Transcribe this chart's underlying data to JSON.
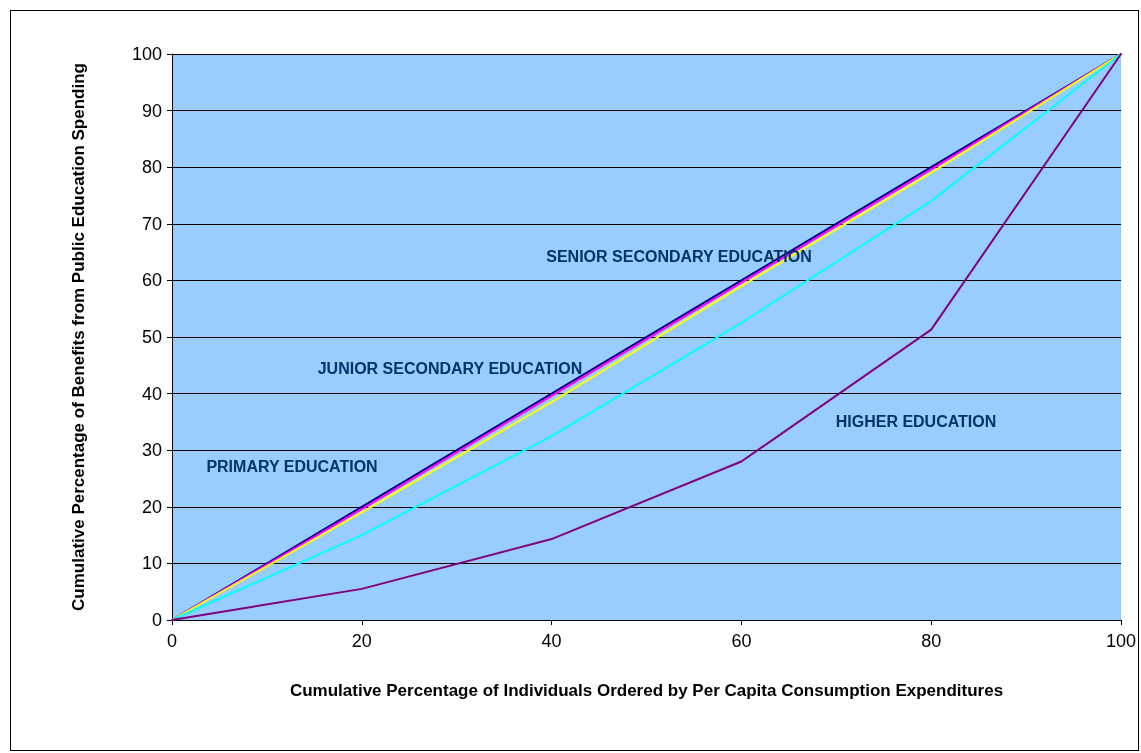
{
  "chart_data": {
    "type": "line",
    "xlabel": "Cumulative Percentage of Individuals Ordered by Per Capita Consumption Expenditures",
    "ylabel": "Cumulative Percentage of Benefits from Public Education Spending",
    "x": [
      0,
      20,
      40,
      60,
      80,
      100
    ],
    "series": [
      {
        "color": "#000080",
        "values": [
          0,
          20,
          40,
          60,
          80,
          100
        ]
      },
      {
        "color": "#ff00ff",
        "values": [
          0,
          19.6,
          39.6,
          59.6,
          79.6,
          100
        ]
      },
      {
        "color": "#ffff00",
        "values": [
          0,
          19,
          38.5,
          59,
          79,
          100
        ]
      },
      {
        "color": "#00ffff",
        "values": [
          0,
          15,
          32.5,
          52.5,
          74,
          100
        ]
      },
      {
        "color": "#800080",
        "values": [
          0,
          5.5,
          14.3,
          28,
          51.3,
          100
        ]
      }
    ],
    "annotations": [
      "PRIMARY EDUCATION",
      "JUNIOR SECONDARY EDUCATION",
      "SENIOR SECONDARY EDUCATION",
      "HIGHER EDUCATION"
    ],
    "xlim": [
      0,
      100
    ],
    "xticks": [
      0,
      20,
      40,
      60,
      80,
      100
    ],
    "ylim": [
      0,
      100
    ],
    "yticks": [
      0,
      10,
      20,
      30,
      40,
      50,
      60,
      70,
      80,
      90,
      100
    ],
    "grid": "y",
    "marker": "none"
  }
}
